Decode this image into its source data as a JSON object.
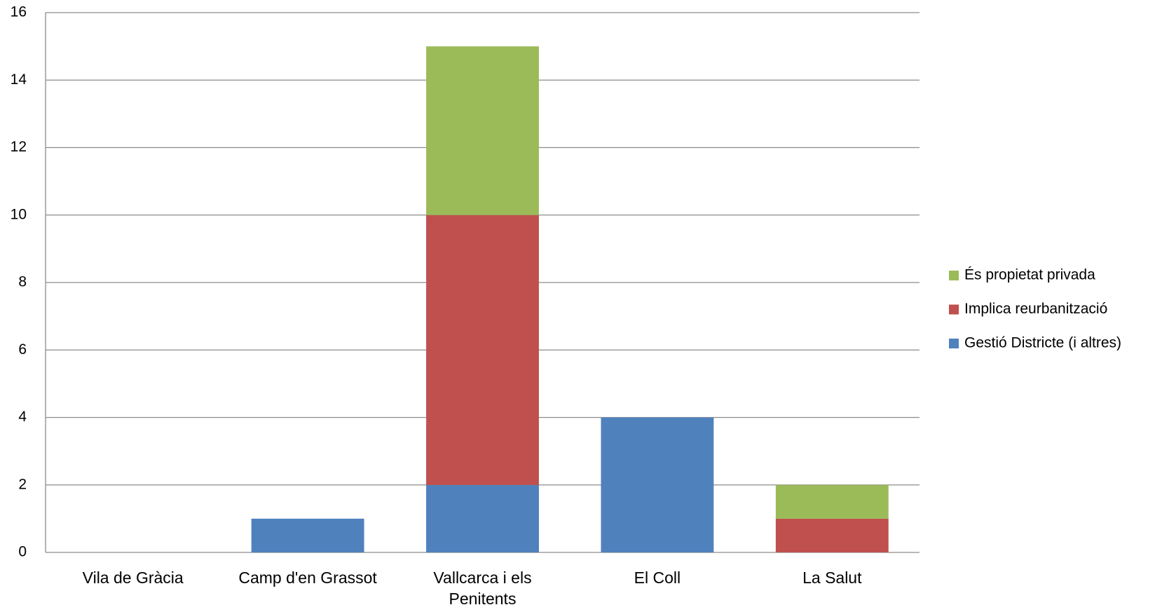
{
  "chart_data": {
    "type": "stacked_bar",
    "categories": [
      "Vila de Gràcia",
      "Camp d'en Grassot",
      "Vallcarca i els Penitents",
      "El Coll",
      "La Salut"
    ],
    "series": [
      {
        "name": "Gestió Districte (i altres)",
        "color": "#4f81bd",
        "values": [
          0,
          1,
          2,
          4,
          0
        ]
      },
      {
        "name": "Implica reurbanització",
        "color": "#c0504d",
        "values": [
          0,
          0,
          8,
          0,
          1
        ]
      },
      {
        "name": "És propietat privada",
        "color": "#9bbb59",
        "values": [
          0,
          0,
          5,
          0,
          1
        ]
      }
    ],
    "ylim": [
      0,
      16
    ],
    "yticks": [
      0,
      2,
      4,
      6,
      8,
      10,
      12,
      14,
      16
    ],
    "grid": true,
    "legend": "right"
  }
}
